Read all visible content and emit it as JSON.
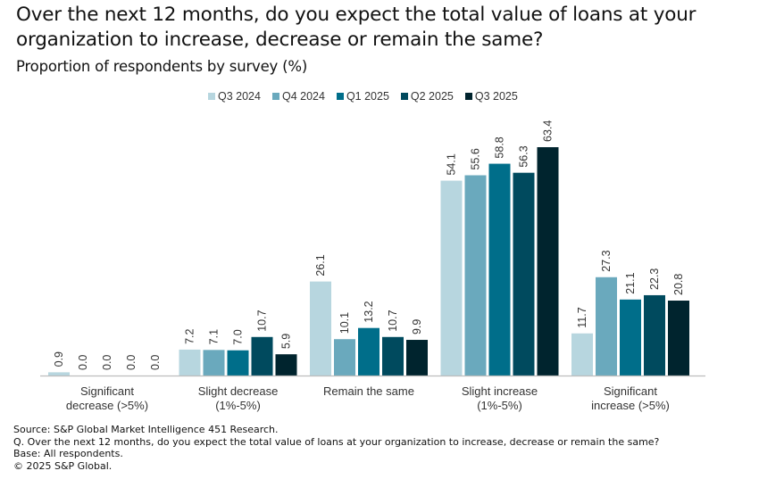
{
  "chart_data": {
    "type": "bar",
    "title": "Over the next 12 months, do you expect the total value of loans at your organization to increase, decrease or remain the same?",
    "subtitle": "Proportion of respondents by survey (%)",
    "xlabel": "",
    "ylabel": "",
    "ylim": [
      0,
      63.4
    ],
    "grid": false,
    "legend_position": "top-center",
    "categories": [
      [
        "Significant",
        "decrease (>5%)"
      ],
      [
        "Slight decrease",
        "(1%-5%)"
      ],
      [
        "Remain the same"
      ],
      [
        "Slight increase",
        "(1%-5%)"
      ],
      [
        "Significant",
        "increase (>5%)"
      ]
    ],
    "series": [
      {
        "name": "Q3 2024",
        "color": "#b7d6df",
        "values": [
          0.9,
          7.2,
          26.1,
          54.1,
          11.7
        ]
      },
      {
        "name": "Q4 2024",
        "color": "#6aa9bd",
        "values": [
          0.0,
          7.1,
          10.1,
          55.6,
          27.3
        ]
      },
      {
        "name": "Q1 2025",
        "color": "#006e8a",
        "values": [
          0.0,
          7.0,
          13.2,
          58.8,
          21.1
        ]
      },
      {
        "name": "Q2 2025",
        "color": "#004a5e",
        "values": [
          0.0,
          10.7,
          10.7,
          56.3,
          22.3
        ]
      },
      {
        "name": "Q3 2025",
        "color": "#00242e",
        "values": [
          0.0,
          5.9,
          9.9,
          63.4,
          20.8
        ]
      }
    ],
    "data_labels": [
      [
        "0.9",
        "0.0",
        "0.0",
        "0.0",
        "0.0"
      ],
      [
        "7.2",
        "7.1",
        "7.0",
        "10.7",
        "5.9"
      ],
      [
        "26.1",
        "10.1",
        "13.2",
        "10.7",
        "9.9"
      ],
      [
        "54.1",
        "55.6",
        "58.8",
        "56.3",
        "63.4"
      ],
      [
        "11.7",
        "27.3",
        "21.1",
        "22.3",
        "20.8"
      ]
    ]
  },
  "footer": {
    "source": "Source: S&P Global Market Intelligence 451 Research.",
    "question": "Q. Over the next 12 months, do you expect the total value of loans at your organization to increase, decrease or remain the same?",
    "base": "Base: All respondents.",
    "copyright": "© 2025 S&P Global."
  }
}
